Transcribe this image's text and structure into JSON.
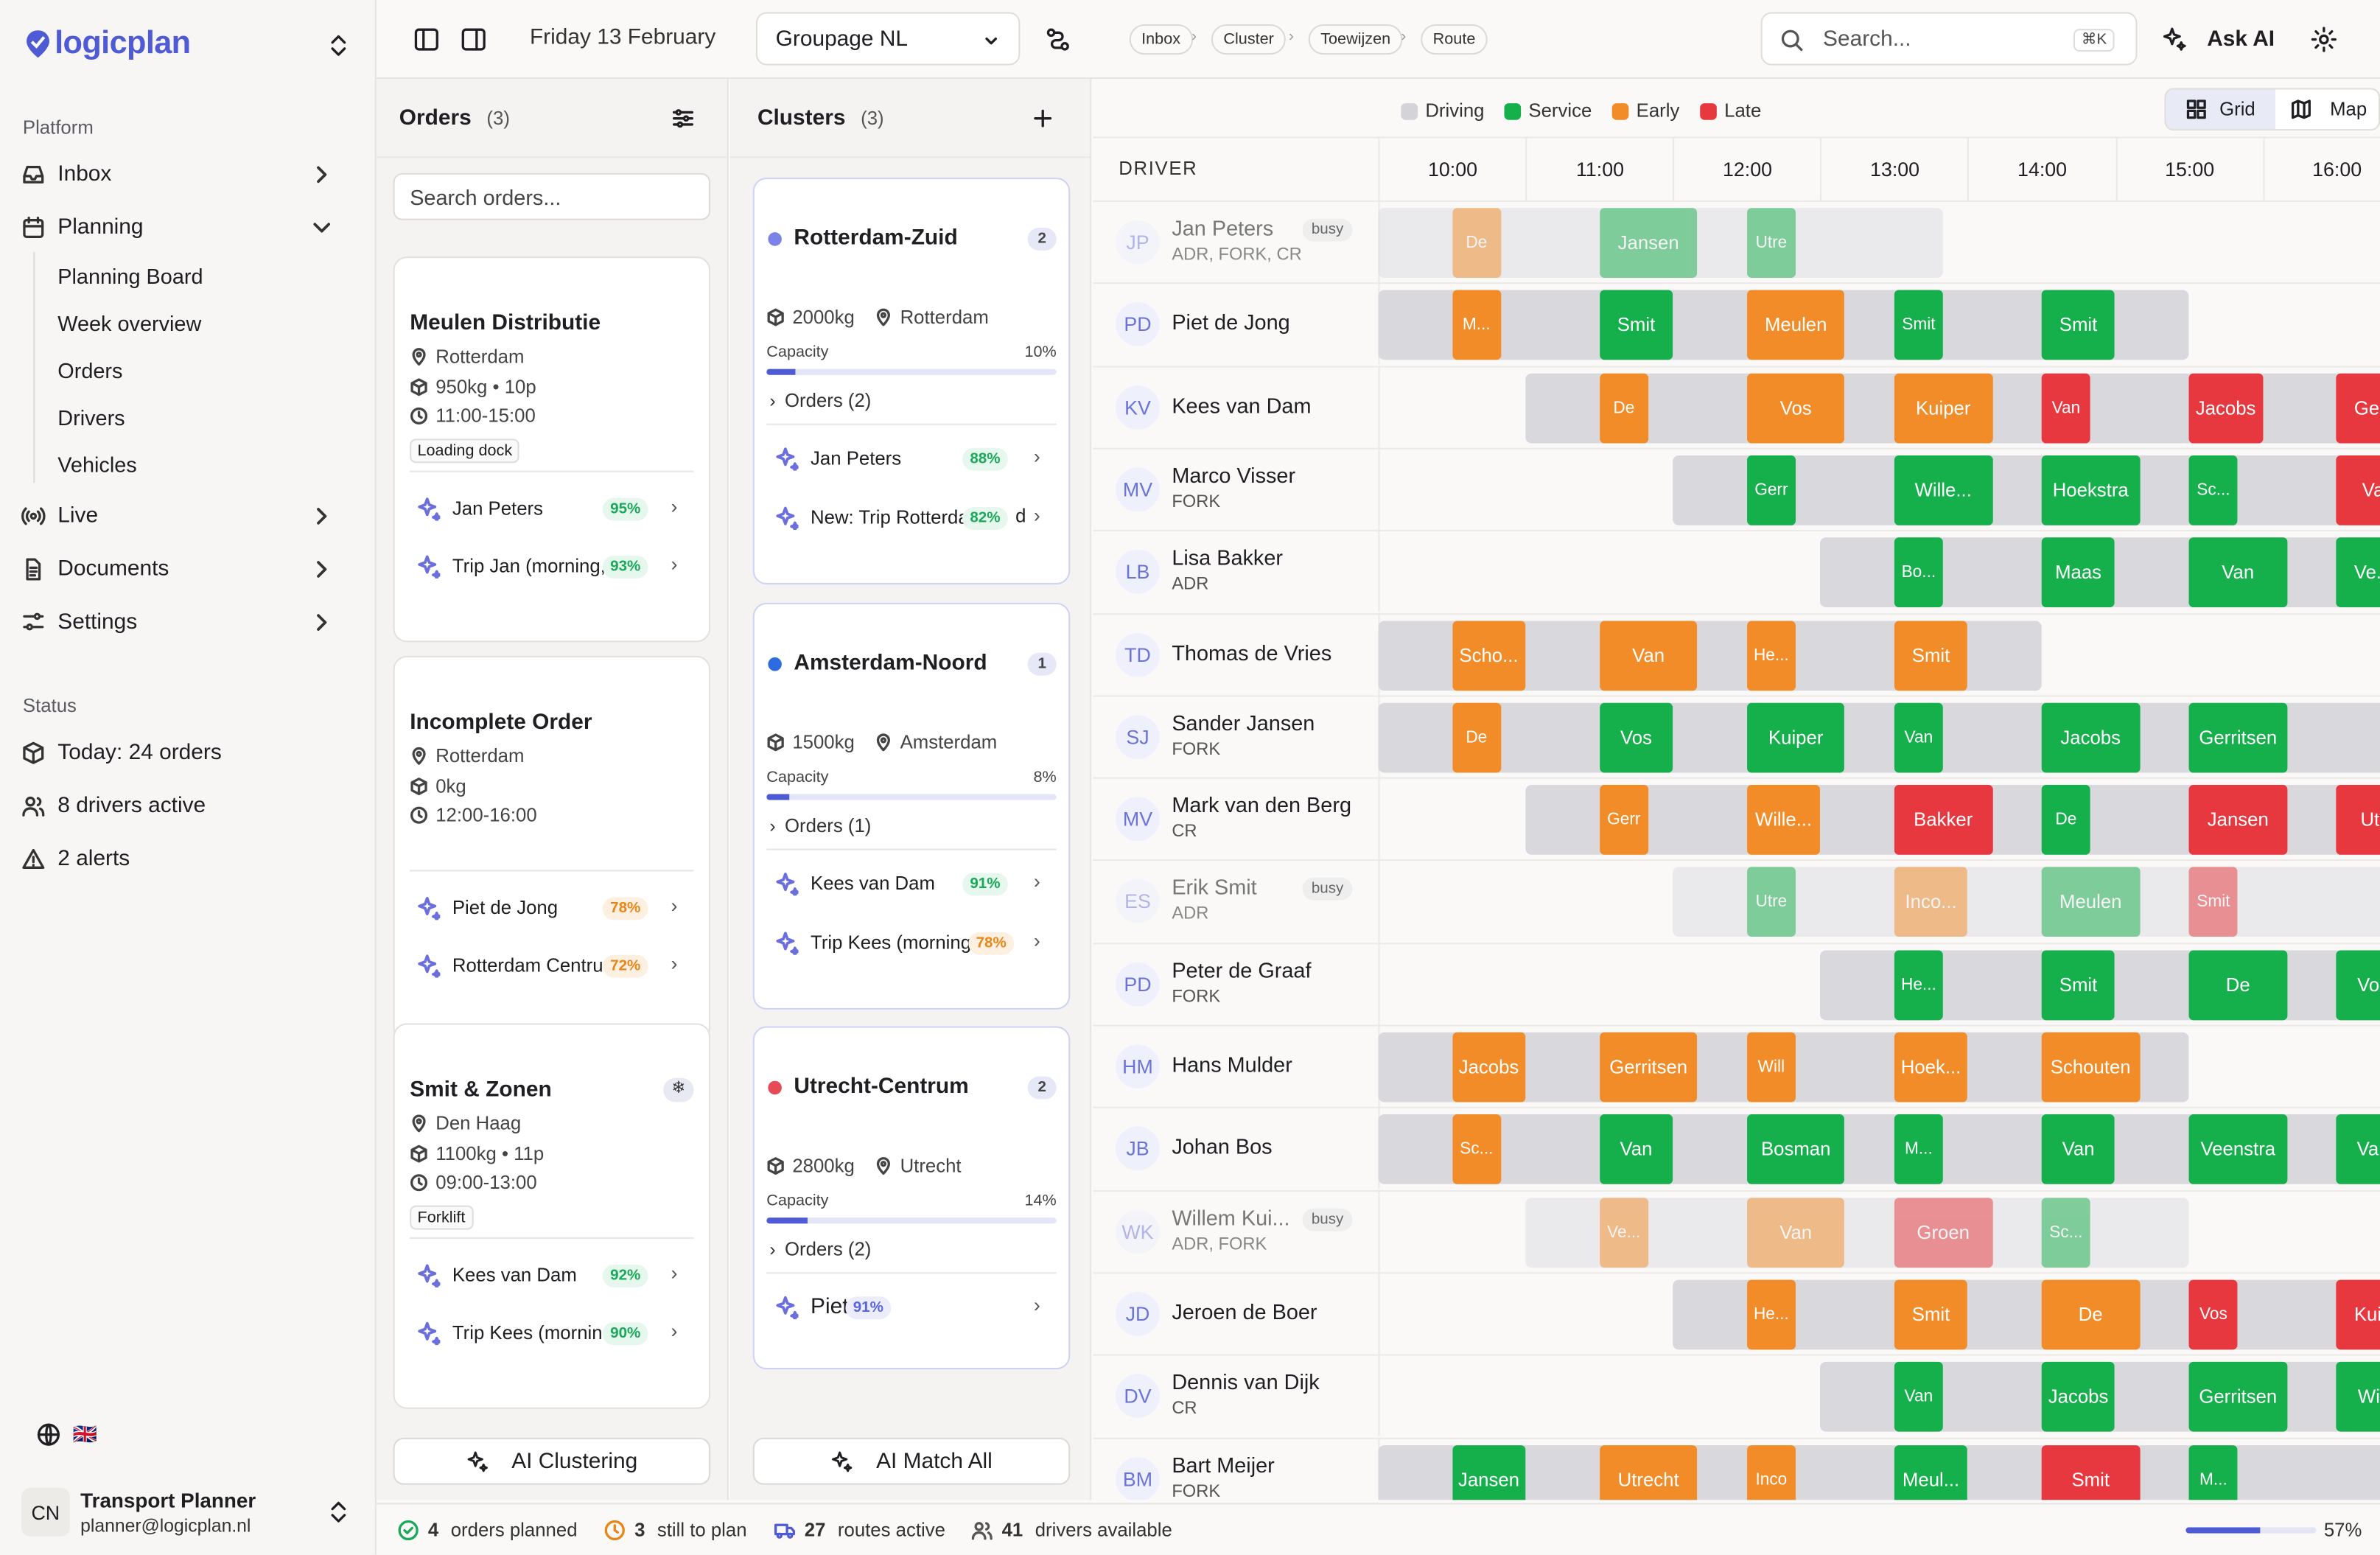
{
  "app": {
    "logo": "logicplan"
  },
  "sidebar": {
    "platform_label": "Platform",
    "items": [
      {
        "label": "Inbox"
      },
      {
        "label": "Planning"
      },
      {
        "label": "Live"
      },
      {
        "label": "Documents"
      },
      {
        "label": "Settings"
      }
    ],
    "planning_sub": [
      "Planning Board",
      "Week overview",
      "Orders",
      "Drivers",
      "Vehicles"
    ],
    "status_label": "Status",
    "status": [
      "Today: 24 orders",
      "8 drivers active",
      "2 alerts"
    ],
    "user": {
      "initials": "CN",
      "name": "Transport Planner",
      "email": "planner@logicplan.nl"
    },
    "language_flag": "🇬🇧"
  },
  "topbar": {
    "date": "Friday 13 February",
    "group_select": "Groupage NL",
    "breadcrumbs": [
      "Inbox",
      "Cluster",
      "Toewijzen",
      "Route"
    ],
    "search_placeholder": "Search...",
    "search_shortcut": "⌘K",
    "ask_ai": "Ask AI"
  },
  "orders": {
    "title": "Orders",
    "count": "(3)",
    "search_placeholder": "Search orders...",
    "cards": [
      {
        "title": "Meulen Distributie",
        "city": "Rotterdam",
        "load": "950kg • 10p",
        "time": "11:00-15:00",
        "tag": "Loading dock",
        "matches": [
          {
            "name": "Jan Peters",
            "pct": "95%",
            "tone": "green"
          },
          {
            "name": "Trip Jan (morning,",
            "pct": "93%",
            "tone": "green"
          }
        ]
      },
      {
        "title": "Incomplete Order",
        "city": "Rotterdam",
        "load": "0kg",
        "time": "12:00-16:00",
        "tag": "",
        "matches": [
          {
            "name": "Piet de Jong",
            "pct": "78%",
            "tone": "orange"
          },
          {
            "name": "Rotterdam Centru",
            "pct": "72%",
            "tone": "orange"
          }
        ]
      },
      {
        "title": "Smit & Zonen",
        "city": "Den Haag",
        "load": "1100kg • 11p",
        "time": "09:00-13:00",
        "tag": "Forklift",
        "matches": [
          {
            "name": "Kees van Dam",
            "pct": "92%",
            "tone": "green"
          },
          {
            "name": "Trip Kees (mornin",
            "pct": "90%",
            "tone": "green"
          }
        ]
      }
    ],
    "ai_button": "AI Clustering"
  },
  "clusters": {
    "title": "Clusters",
    "count": "(3)",
    "capacity_label": "Capacity",
    "cards": [
      {
        "name": "Rotterdam-Zuid",
        "badge": "2",
        "dot": "#7b83e6",
        "weight": "2000kg",
        "city": "Rotterdam",
        "capacity": "10%",
        "fill": 0.1,
        "orders": "Orders (2)",
        "matches": [
          {
            "name": "Jan Peters",
            "pct": "88%",
            "tone": "green"
          },
          {
            "name": "New: Trip Rotterda",
            "pct": "82%",
            "tone": "green",
            "suffix": "d"
          }
        ]
      },
      {
        "name": "Amsterdam-Noord",
        "badge": "1",
        "dot": "#2d6be0",
        "weight": "1500kg",
        "city": "Amsterdam",
        "capacity": "8%",
        "fill": 0.08,
        "orders": "Orders (1)",
        "matches": [
          {
            "name": "Kees van Dam",
            "pct": "91%",
            "tone": "green"
          },
          {
            "name": "Trip Kees (morning",
            "pct": "78%",
            "tone": "orange"
          }
        ]
      },
      {
        "name": "Utrecht-Centrum",
        "badge": "2",
        "dot": "#e64b55",
        "weight": "2800kg",
        "city": "Utrecht",
        "capacity": "14%",
        "fill": 0.14,
        "orders": "Orders (2)",
        "matches": [
          {
            "name": "Piet",
            "pct": "91%",
            "tone": "blue"
          }
        ]
      }
    ],
    "ai_button": "AI Match All"
  },
  "timeline": {
    "legend": [
      {
        "label": "Driving",
        "color": "#d3d3d8"
      },
      {
        "label": "Service",
        "color": "#15b04b"
      },
      {
        "label": "Early",
        "color": "#f28c28"
      },
      {
        "label": "Late",
        "color": "#e8383f"
      }
    ],
    "view_grid": "Grid",
    "view_map": "Map",
    "driver_header": "DRIVER",
    "hours": [
      "10:00",
      "11:00",
      "12:00",
      "13:00",
      "14:00",
      "15:00",
      "16:00"
    ],
    "drivers": [
      {
        "initials": "JP",
        "name": "Jan Peters",
        "sub": "ADR, FORK, CR",
        "busy": "busy",
        "dim": true
      },
      {
        "initials": "PD",
        "name": "Piet de Jong",
        "sub": "",
        "busy": ""
      },
      {
        "initials": "KV",
        "name": "Kees van Dam",
        "sub": "",
        "busy": ""
      },
      {
        "initials": "MV",
        "name": "Marco Visser",
        "sub": "FORK",
        "busy": ""
      },
      {
        "initials": "LB",
        "name": "Lisa Bakker",
        "sub": "ADR",
        "busy": ""
      },
      {
        "initials": "TD",
        "name": "Thomas de Vries",
        "sub": "",
        "busy": ""
      },
      {
        "initials": "SJ",
        "name": "Sander Jansen",
        "sub": "FORK",
        "busy": ""
      },
      {
        "initials": "MV",
        "name": "Mark van den Berg",
        "sub": "CR",
        "busy": ""
      },
      {
        "initials": "ES",
        "name": "Erik Smit",
        "sub": "ADR",
        "busy": "busy",
        "dim": true
      },
      {
        "initials": "PD",
        "name": "Peter de Graaf",
        "sub": "FORK",
        "busy": ""
      },
      {
        "initials": "HM",
        "name": "Hans Mulder",
        "sub": "",
        "busy": ""
      },
      {
        "initials": "JB",
        "name": "Johan Bos",
        "sub": "",
        "busy": ""
      },
      {
        "initials": "WK",
        "name": "Willem Kui...",
        "sub": "ADR, FORK",
        "busy": "busy",
        "dim": true
      },
      {
        "initials": "JD",
        "name": "Jeroen de Boer",
        "sub": "",
        "busy": ""
      },
      {
        "initials": "DV",
        "name": "Dennis van Dijk",
        "sub": "CR",
        "busy": ""
      },
      {
        "initials": "BM",
        "name": "Bart Meijer",
        "sub": "FORK",
        "busy": ""
      }
    ],
    "schedule": [
      {
        "window": [
          "09:30",
          "13:20"
        ],
        "stops": [
          {
            "start": "10:00",
            "end": "10:20",
            "label": "De",
            "kind": "early"
          },
          {
            "start": "11:00",
            "end": "11:40",
            "label": "Jansen",
            "kind": "service"
          },
          {
            "start": "12:00",
            "end": "12:20",
            "label": "Utre",
            "kind": "service"
          }
        ]
      },
      {
        "window": [
          "09:30",
          "15:00"
        ],
        "stops": [
          {
            "start": "10:00",
            "end": "10:20",
            "label": "M...",
            "kind": "early"
          },
          {
            "start": "11:00",
            "end": "11:30",
            "label": "Smit",
            "kind": "service"
          },
          {
            "start": "12:00",
            "end": "12:40",
            "label": "Meulen",
            "kind": "early"
          },
          {
            "start": "13:00",
            "end": "13:20",
            "label": "Smit",
            "kind": "service"
          },
          {
            "start": "14:00",
            "end": "14:30",
            "label": "Smit",
            "kind": "service"
          }
        ]
      },
      {
        "window": [
          "10:30",
          "16:30"
        ],
        "stops": [
          {
            "start": "11:00",
            "end": "11:20",
            "label": "De",
            "kind": "early"
          },
          {
            "start": "12:00",
            "end": "12:40",
            "label": "Vos",
            "kind": "early"
          },
          {
            "start": "13:00",
            "end": "13:40",
            "label": "Kuiper",
            "kind": "early"
          },
          {
            "start": "14:00",
            "end": "14:20",
            "label": "Van",
            "kind": "late"
          },
          {
            "start": "15:00",
            "end": "15:30",
            "label": "Jacobs",
            "kind": "late"
          },
          {
            "start": "16:00",
            "end": "16:30",
            "label": "Gerr",
            "kind": "late"
          }
        ]
      },
      {
        "window": [
          "11:30",
          "16:30"
        ],
        "stops": [
          {
            "start": "12:00",
            "end": "12:20",
            "label": "Gerr",
            "kind": "service"
          },
          {
            "start": "13:00",
            "end": "13:40",
            "label": "Wille...",
            "kind": "service"
          },
          {
            "start": "14:00",
            "end": "14:40",
            "label": "Hoekstra",
            "kind": "service"
          },
          {
            "start": "15:00",
            "end": "15:20",
            "label": "Sc...",
            "kind": "service"
          },
          {
            "start": "16:00",
            "end": "16:30",
            "label": "Va",
            "kind": "late"
          }
        ]
      },
      {
        "window": [
          "12:30",
          "16:30"
        ],
        "stops": [
          {
            "start": "13:00",
            "end": "13:20",
            "label": "Bo...",
            "kind": "service"
          },
          {
            "start": "14:00",
            "end": "14:30",
            "label": "Maas",
            "kind": "service"
          },
          {
            "start": "15:00",
            "end": "15:40",
            "label": "Van",
            "kind": "service"
          },
          {
            "start": "16:00",
            "end": "16:30",
            "label": "Ve...",
            "kind": "service"
          }
        ]
      },
      {
        "window": [
          "09:30",
          "14:00"
        ],
        "stops": [
          {
            "start": "10:00",
            "end": "10:30",
            "label": "Scho...",
            "kind": "early"
          },
          {
            "start": "11:00",
            "end": "11:40",
            "label": "Van",
            "kind": "early"
          },
          {
            "start": "12:00",
            "end": "12:20",
            "label": "He...",
            "kind": "early"
          },
          {
            "start": "13:00",
            "end": "13:30",
            "label": "Smit",
            "kind": "early"
          }
        ]
      },
      {
        "window": [
          "09:30",
          "16:30"
        ],
        "stops": [
          {
            "start": "10:00",
            "end": "10:20",
            "label": "De",
            "kind": "early"
          },
          {
            "start": "11:00",
            "end": "11:30",
            "label": "Vos",
            "kind": "service"
          },
          {
            "start": "12:00",
            "end": "12:40",
            "label": "Kuiper",
            "kind": "service"
          },
          {
            "start": "13:00",
            "end": "13:20",
            "label": "Van",
            "kind": "service"
          },
          {
            "start": "14:00",
            "end": "14:40",
            "label": "Jacobs",
            "kind": "service"
          },
          {
            "start": "15:00",
            "end": "15:40",
            "label": "Gerritsen",
            "kind": "service"
          }
        ]
      },
      {
        "window": [
          "10:30",
          "16:30"
        ],
        "stops": [
          {
            "start": "11:00",
            "end": "11:20",
            "label": "Gerr",
            "kind": "early"
          },
          {
            "start": "12:00",
            "end": "12:30",
            "label": "Wille...",
            "kind": "early"
          },
          {
            "start": "13:00",
            "end": "13:40",
            "label": "Bakker",
            "kind": "late"
          },
          {
            "start": "14:00",
            "end": "14:20",
            "label": "De",
            "kind": "service"
          },
          {
            "start": "15:00",
            "end": "15:40",
            "label": "Jansen",
            "kind": "late"
          },
          {
            "start": "16:00",
            "end": "16:30",
            "label": "Utr",
            "kind": "late"
          }
        ]
      },
      {
        "window": [
          "11:30",
          "16:30"
        ],
        "stops": [
          {
            "start": "12:00",
            "end": "12:20",
            "label": "Utre",
            "kind": "service"
          },
          {
            "start": "13:00",
            "end": "13:30",
            "label": "Inco...",
            "kind": "early"
          },
          {
            "start": "14:00",
            "end": "14:40",
            "label": "Meulen",
            "kind": "service"
          },
          {
            "start": "15:00",
            "end": "15:20",
            "label": "Smit",
            "kind": "late"
          }
        ]
      },
      {
        "window": [
          "12:30",
          "16:30"
        ],
        "stops": [
          {
            "start": "13:00",
            "end": "13:20",
            "label": "He...",
            "kind": "service"
          },
          {
            "start": "14:00",
            "end": "14:30",
            "label": "Smit",
            "kind": "service"
          },
          {
            "start": "15:00",
            "end": "15:40",
            "label": "De",
            "kind": "service"
          },
          {
            "start": "16:00",
            "end": "16:30",
            "label": "Vos",
            "kind": "service"
          }
        ]
      },
      {
        "window": [
          "09:30",
          "15:00"
        ],
        "stops": [
          {
            "start": "10:00",
            "end": "10:30",
            "label": "Jacobs",
            "kind": "early"
          },
          {
            "start": "11:00",
            "end": "11:40",
            "label": "Gerritsen",
            "kind": "early"
          },
          {
            "start": "12:00",
            "end": "12:20",
            "label": "Will",
            "kind": "early"
          },
          {
            "start": "13:00",
            "end": "13:30",
            "label": "Hoek...",
            "kind": "early"
          },
          {
            "start": "14:00",
            "end": "14:40",
            "label": "Schouten",
            "kind": "early"
          }
        ]
      },
      {
        "window": [
          "09:30",
          "16:30"
        ],
        "stops": [
          {
            "start": "10:00",
            "end": "10:20",
            "label": "Sc...",
            "kind": "early"
          },
          {
            "start": "11:00",
            "end": "11:30",
            "label": "Van",
            "kind": "service"
          },
          {
            "start": "12:00",
            "end": "12:40",
            "label": "Bosman",
            "kind": "service"
          },
          {
            "start": "13:00",
            "end": "13:20",
            "label": "M...",
            "kind": "service"
          },
          {
            "start": "14:00",
            "end": "14:30",
            "label": "Van",
            "kind": "service"
          },
          {
            "start": "15:00",
            "end": "15:40",
            "label": "Veenstra",
            "kind": "service"
          },
          {
            "start": "16:00",
            "end": "16:30",
            "label": "Van",
            "kind": "service"
          }
        ]
      },
      {
        "window": [
          "10:30",
          "15:00"
        ],
        "stops": [
          {
            "start": "11:00",
            "end": "11:20",
            "label": "Ve...",
            "kind": "early"
          },
          {
            "start": "12:00",
            "end": "12:40",
            "label": "Van",
            "kind": "early"
          },
          {
            "start": "13:00",
            "end": "13:40",
            "label": "Groen",
            "kind": "late"
          },
          {
            "start": "14:00",
            "end": "14:20",
            "label": "Sc...",
            "kind": "service"
          }
        ]
      },
      {
        "window": [
          "11:30",
          "16:30"
        ],
        "stops": [
          {
            "start": "12:00",
            "end": "12:20",
            "label": "He...",
            "kind": "early"
          },
          {
            "start": "13:00",
            "end": "13:30",
            "label": "Smit",
            "kind": "early"
          },
          {
            "start": "14:00",
            "end": "14:40",
            "label": "De",
            "kind": "early"
          },
          {
            "start": "15:00",
            "end": "15:20",
            "label": "Vos",
            "kind": "late"
          },
          {
            "start": "16:00",
            "end": "16:30",
            "label": "Kuip",
            "kind": "late"
          }
        ]
      },
      {
        "window": [
          "12:30",
          "16:30"
        ],
        "stops": [
          {
            "start": "13:00",
            "end": "13:20",
            "label": "Van",
            "kind": "service"
          },
          {
            "start": "14:00",
            "end": "14:30",
            "label": "Jacobs",
            "kind": "service"
          },
          {
            "start": "15:00",
            "end": "15:40",
            "label": "Gerritsen",
            "kind": "service"
          },
          {
            "start": "16:00",
            "end": "16:30",
            "label": "Will",
            "kind": "service"
          }
        ]
      },
      {
        "window": [
          "09:30",
          "16:30"
        ],
        "stops": [
          {
            "start": "10:00",
            "end": "10:30",
            "label": "Jansen",
            "kind": "service"
          },
          {
            "start": "11:00",
            "end": "11:40",
            "label": "Utrecht",
            "kind": "early"
          },
          {
            "start": "12:00",
            "end": "12:20",
            "label": "Inco",
            "kind": "early"
          },
          {
            "start": "13:00",
            "end": "13:30",
            "label": "Meul...",
            "kind": "service"
          },
          {
            "start": "14:00",
            "end": "14:40",
            "label": "Smit",
            "kind": "late"
          },
          {
            "start": "15:00",
            "end": "15:20",
            "label": "M...",
            "kind": "service"
          }
        ]
      }
    ]
  },
  "footer": {
    "planned_num": "4",
    "planned_label": "orders planned",
    "toplan_num": "3",
    "toplan_label": "still to plan",
    "routes_num": "27",
    "routes_label": "routes active",
    "drivers_num": "41",
    "drivers_label": "drivers available",
    "progress": "57%",
    "progress_fraction": 0.57
  }
}
